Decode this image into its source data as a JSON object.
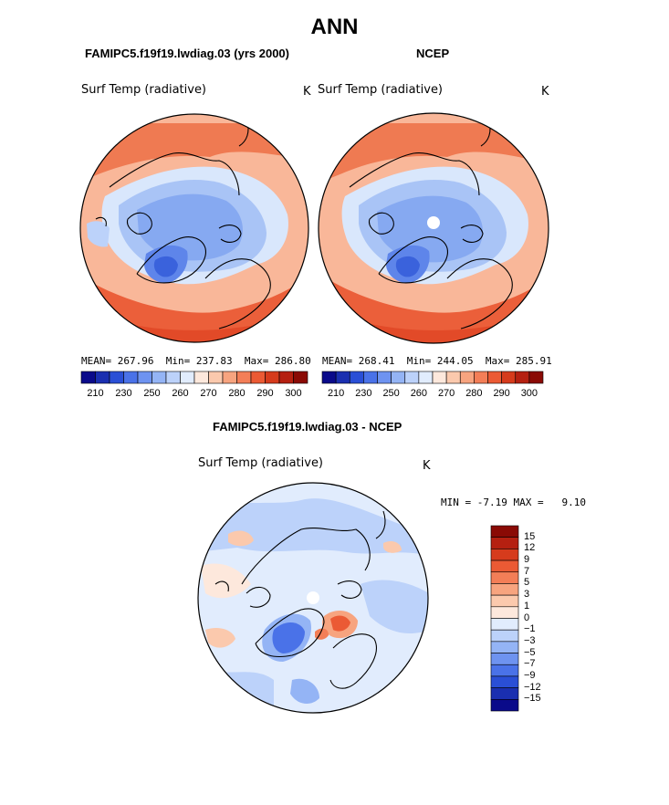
{
  "title": "ANN",
  "panel_left": {
    "case": "FAMIPC5.f19f19.lwdiag.03 (yrs 2000)",
    "variable": "Surf Temp (radiative)",
    "units": "K",
    "stats": {
      "mean_label": "MEAN=",
      "mean": "267.96",
      "min_label": "Min=",
      "min": "237.83",
      "max_label": "Max=",
      "max": "286.80"
    }
  },
  "panel_right": {
    "case": "NCEP",
    "variable": "Surf Temp (radiative)",
    "units": "K",
    "stats": {
      "mean_label": "MEAN=",
      "mean": "268.41",
      "min_label": "Min=",
      "min": "244.05",
      "max_label": "Max=",
      "max": "285.91"
    }
  },
  "panel_diff": {
    "case": "FAMIPC5.f19f19.lwdiag.03 - NCEP",
    "variable": "Surf Temp (radiative)",
    "units": "K",
    "min_label": "MIN =",
    "min": "-7.19",
    "max_label": "MAX =",
    "max": "9.10"
  },
  "colorbar_abs": {
    "labels": [
      "210",
      "230",
      "250",
      "260",
      "270",
      "280",
      "290",
      "300"
    ],
    "colors": [
      "#0a0a8a",
      "#1a2fb0",
      "#2a4fd6",
      "#4a72e8",
      "#6e93f0",
      "#94b4f5",
      "#bcd2fa",
      "#e1ecfd",
      "#fde8dc",
      "#fbc9ad",
      "#f7a47f",
      "#f37e57",
      "#eb5a34",
      "#d63b1c",
      "#b52011",
      "#8a0a05"
    ]
  },
  "colorbar_diff": {
    "labels": [
      "15",
      "12",
      "9",
      "7",
      "5",
      "3",
      "1",
      "0",
      "−1",
      "−3",
      "−5",
      "−7",
      "−9",
      "−12",
      "−15"
    ],
    "colors": [
      "#8a0a05",
      "#b52011",
      "#d63b1c",
      "#eb5a34",
      "#f37e57",
      "#f7a47f",
      "#fbc9ad",
      "#fde8dc",
      "#e1ecfd",
      "#bcd2fa",
      "#94b4f5",
      "#6e93f0",
      "#4a72e8",
      "#2a4fd6",
      "#1a2fb0",
      "#0a0a8a"
    ]
  }
}
